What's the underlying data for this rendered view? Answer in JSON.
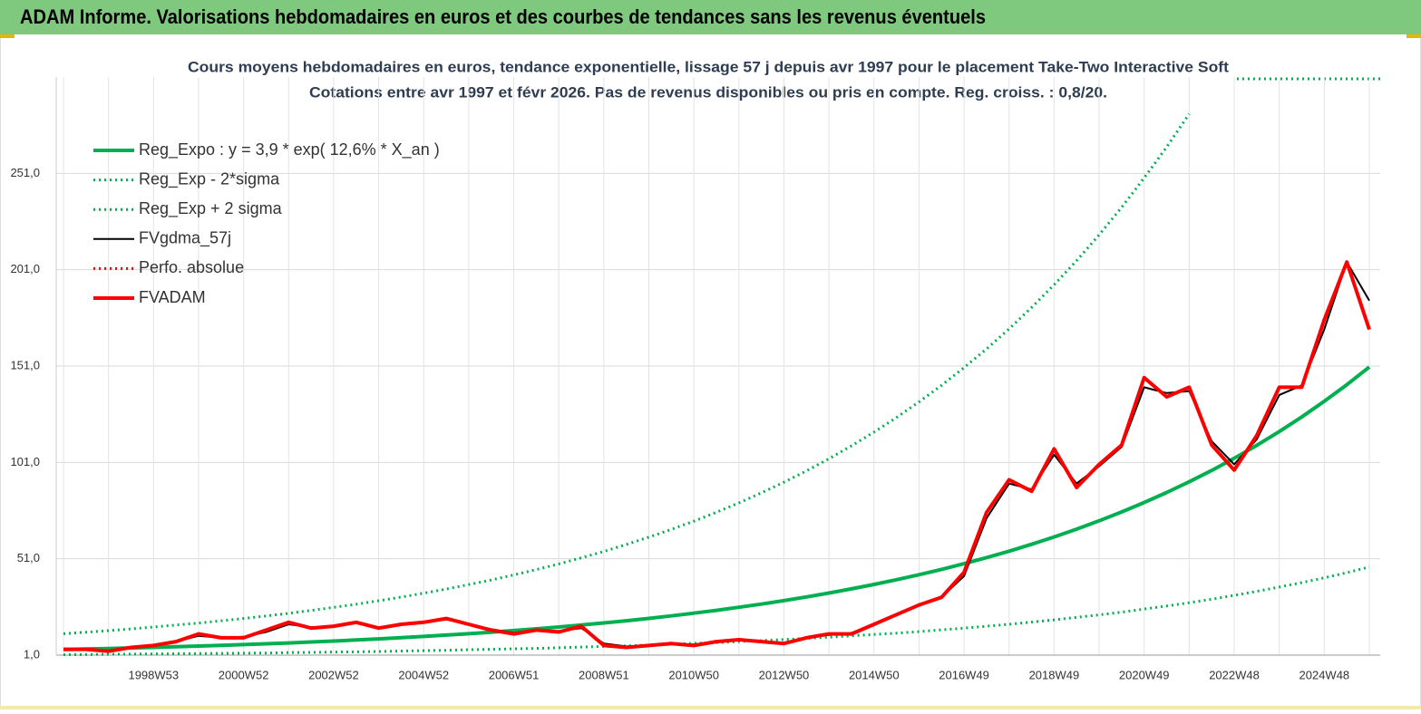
{
  "header": "ADAM Informe. Valorisations hebdomadaires en euros et des courbes de tendances sans les revenus éventuels",
  "chart_data": {
    "type": "line",
    "title": "Cours moyens hebdomadaires en euros, tendance exponentielle, lissage 57 j depuis avr 1997 pour le placement Take-Two Interactive Soft",
    "subtitle": "Cotations entre avr 1997 et févr 2026. Pas de revenus disponibles ou pris en compte. Reg. croiss. : 0,8/20.",
    "categories": [
      null,
      null,
      null,
      null,
      "1998W53",
      null,
      null,
      null,
      "2000W52",
      null,
      null,
      null,
      "2002W52",
      null,
      null,
      null,
      "2004W52",
      null,
      null,
      null,
      "2006W51",
      null,
      null,
      null,
      "2008W51",
      null,
      null,
      null,
      "2010W50",
      null,
      null,
      null,
      "2012W50",
      null,
      null,
      null,
      "2014W50",
      null,
      null,
      null,
      "2016W49",
      null,
      null,
      null,
      "2018W49",
      null,
      null,
      null,
      "2020W49",
      null,
      null,
      null,
      "2022W48",
      null,
      null,
      null,
      "2024W48",
      null,
      null
    ],
    "ylim": [
      1,
      301
    ],
    "yticks": [
      {
        "value": 1,
        "label": "1,0"
      },
      {
        "value": 51,
        "label": "51,0"
      },
      {
        "value": 101,
        "label": "101,0"
      },
      {
        "value": 151,
        "label": "151,0"
      },
      {
        "value": 201,
        "label": "201,0"
      },
      {
        "value": 251,
        "label": "251,0"
      }
    ],
    "grid": true,
    "legend": "upper left",
    "series": [
      {
        "name": "Reg_Expo : y = 3,9 * exp( 12,6% *  X_an )",
        "color": "#00b050",
        "line_style": "thick",
        "values": [
          3.9,
          4.15,
          4.42,
          4.71,
          5.02,
          5.34,
          5.69,
          6.06,
          6.45,
          6.87,
          7.32,
          7.8,
          8.31,
          8.85,
          9.42,
          10.03,
          10.69,
          11.38,
          12.12,
          12.91,
          13.75,
          14.64,
          15.59,
          16.61,
          17.69,
          18.84,
          20.06,
          21.36,
          22.75,
          24.23,
          25.81,
          27.48,
          29.27,
          31.17,
          33.2,
          35.36,
          37.66,
          40.1,
          42.71,
          45.49,
          48.45,
          51.59,
          54.95,
          58.52,
          62.32,
          66.37,
          70.69,
          75.28,
          80.18,
          85.39,
          90.94,
          96.85,
          103.14,
          109.85,
          116.99,
          124.59,
          132.69,
          141.32,
          150.5
        ]
      },
      {
        "name": "Reg_Exp - 2*sigma",
        "color": "#00b050",
        "line_style": "dotted",
        "values": [
          1.2,
          1.3,
          1.4,
          1.5,
          1.6,
          1.7,
          1.8,
          1.9,
          2.0,
          2.1,
          2.3,
          2.4,
          2.6,
          2.7,
          2.9,
          3.1,
          3.3,
          3.5,
          3.8,
          4.0,
          4.3,
          4.5,
          4.8,
          5.2,
          5.5,
          5.8,
          6.2,
          6.6,
          7.1,
          7.5,
          8.0,
          8.5,
          9.1,
          9.7,
          10.3,
          11.0,
          11.7,
          12.4,
          13.2,
          14.1,
          15.0,
          16.0,
          17.0,
          18.1,
          19.3,
          20.6,
          21.9,
          23.3,
          24.9,
          26.5,
          28.2,
          30.0,
          32.0,
          34.1,
          36.3,
          38.6,
          41.1,
          43.8,
          46.7
        ]
      },
      {
        "name": "Reg_Exp + 2 sigma",
        "color": "#00b050",
        "line_style": "dotted",
        "values": [
          12.1,
          12.9,
          13.7,
          14.6,
          15.6,
          16.6,
          17.6,
          18.8,
          20.0,
          21.3,
          22.7,
          24.2,
          25.8,
          27.4,
          29.2,
          31.1,
          33.1,
          35.3,
          37.6,
          40.0,
          42.6,
          45.4,
          48.3,
          51.5,
          54.8,
          58.4,
          62.2,
          66.2,
          70.5,
          75.1,
          80.0,
          85.2,
          90.7,
          96.6,
          102.9,
          109.6,
          116.7,
          124.3,
          132.4,
          141.0,
          150.2,
          159.9,
          170.3,
          181.4,
          193.2,
          205.7,
          219.1,
          233.4,
          248.6,
          264.7,
          281.9,
          null,
          null,
          null,
          null,
          null,
          null,
          null,
          null
        ]
      },
      {
        "name": "FVgdma_57j",
        "color": "#000000",
        "line_style": "solid",
        "values": [
          4,
          4,
          3.5,
          5,
          6,
          8,
          11,
          10,
          10.5,
          13,
          17,
          15.5,
          16,
          17.5,
          15.5,
          17,
          18,
          19.5,
          17,
          14.5,
          12.5,
          13.5,
          13.5,
          15,
          7,
          5.5,
          6,
          7,
          6.5,
          8,
          9,
          8,
          7.5,
          10,
          11.5,
          12.5,
          16.5,
          22,
          27,
          31,
          42,
          72,
          90,
          87,
          105,
          90,
          99,
          109,
          140,
          137,
          138,
          112,
          100,
          113,
          136,
          141,
          170,
          205,
          185
        ]
      },
      {
        "name": "Perfo. absolue",
        "color": "#ff0000",
        "line_style": "dotted",
        "values": [
          null,
          null,
          null,
          null,
          null,
          null,
          null,
          null,
          null,
          null,
          null,
          null,
          null,
          null,
          null,
          null,
          null,
          null,
          null,
          null,
          null,
          null,
          null,
          null,
          null,
          null,
          null,
          null,
          null,
          null,
          null,
          null,
          null,
          null,
          null,
          null,
          null,
          null,
          null,
          null,
          null,
          null,
          null,
          null,
          null,
          null,
          null,
          null,
          null,
          null,
          null,
          null,
          null,
          null,
          null,
          null,
          null,
          null,
          null
        ]
      },
      {
        "name": "FVADAM",
        "color": "#ff0000",
        "line_style": "thick",
        "values": [
          4,
          4,
          3,
          5,
          6,
          8,
          12,
          10,
          10,
          14,
          18,
          15,
          16,
          18,
          15,
          17,
          18,
          20,
          17,
          14,
          12,
          14,
          13,
          16,
          6,
          5,
          6,
          7,
          6,
          8,
          9,
          8,
          7,
          10,
          12,
          12,
          17,
          22,
          27,
          31,
          44,
          75,
          92,
          86,
          108,
          88,
          100,
          110,
          145,
          135,
          140,
          110,
          97,
          115,
          140,
          140,
          175,
          205,
          170
        ]
      }
    ]
  }
}
